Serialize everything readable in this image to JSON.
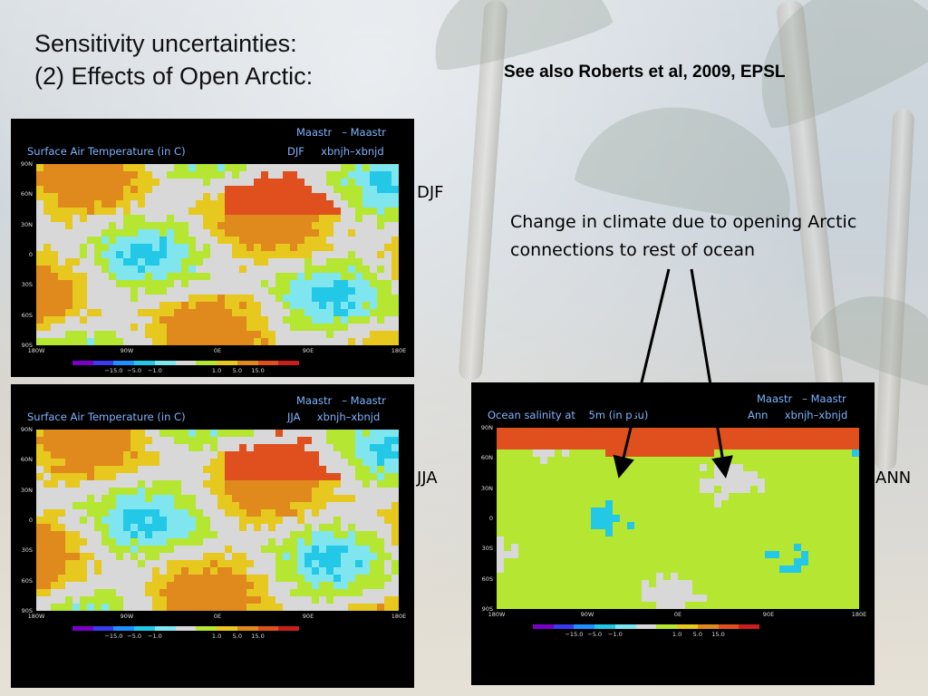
{
  "slide": {
    "title_line1": "Sensitivity uncertainties:",
    "title_line2": "(2) Effects of Open Arctic:",
    "reference": "See also Roberts et al, 2009, EPSL",
    "annotation": "Change in climate due to opening Arctic connections to rest of ocean",
    "labels": {
      "djf": "DJF",
      "jja": "JJA",
      "ann": "ANN"
    }
  },
  "panels": {
    "djf": {
      "model_line": "Maastr   – Maastr",
      "variable": "Surface Air Temperature (in C)",
      "period_line": "DJF     xbnjh–xbnjd"
    },
    "jja": {
      "model_line": "Maastr   – Maastr",
      "variable": "Surface Air Temperature (in C)",
      "period_line": "JJA     xbnjh–xbnjd"
    },
    "ann": {
      "model_line": "Maastr   – Maastr",
      "variable": "Ocean salinity at    5m (in psu)",
      "period_line": "Ann     xbnjh–xbnjd"
    }
  },
  "axes": {
    "lat_ticks": [
      "90N",
      "60N",
      "30N",
      "0",
      "30S",
      "60S",
      "90S"
    ],
    "lon_ticks": [
      "180W",
      "90W",
      "0E",
      "90E",
      "180E"
    ],
    "colorbar_ticks": [
      "−15.0",
      "−5.0",
      "−1.0",
      "1.0",
      "5.0",
      "15.0"
    ]
  },
  "colors": {
    "palette": [
      "#7a00c8",
      "#3a3af0",
      "#1e90ff",
      "#22c8e6",
      "#7fe6f0",
      "#d8d8d8",
      "#b4e632",
      "#e6c81e",
      "#e08a1e",
      "#e0501e",
      "#c81e1e"
    ],
    "header_text": "#7fb3ff"
  }
}
